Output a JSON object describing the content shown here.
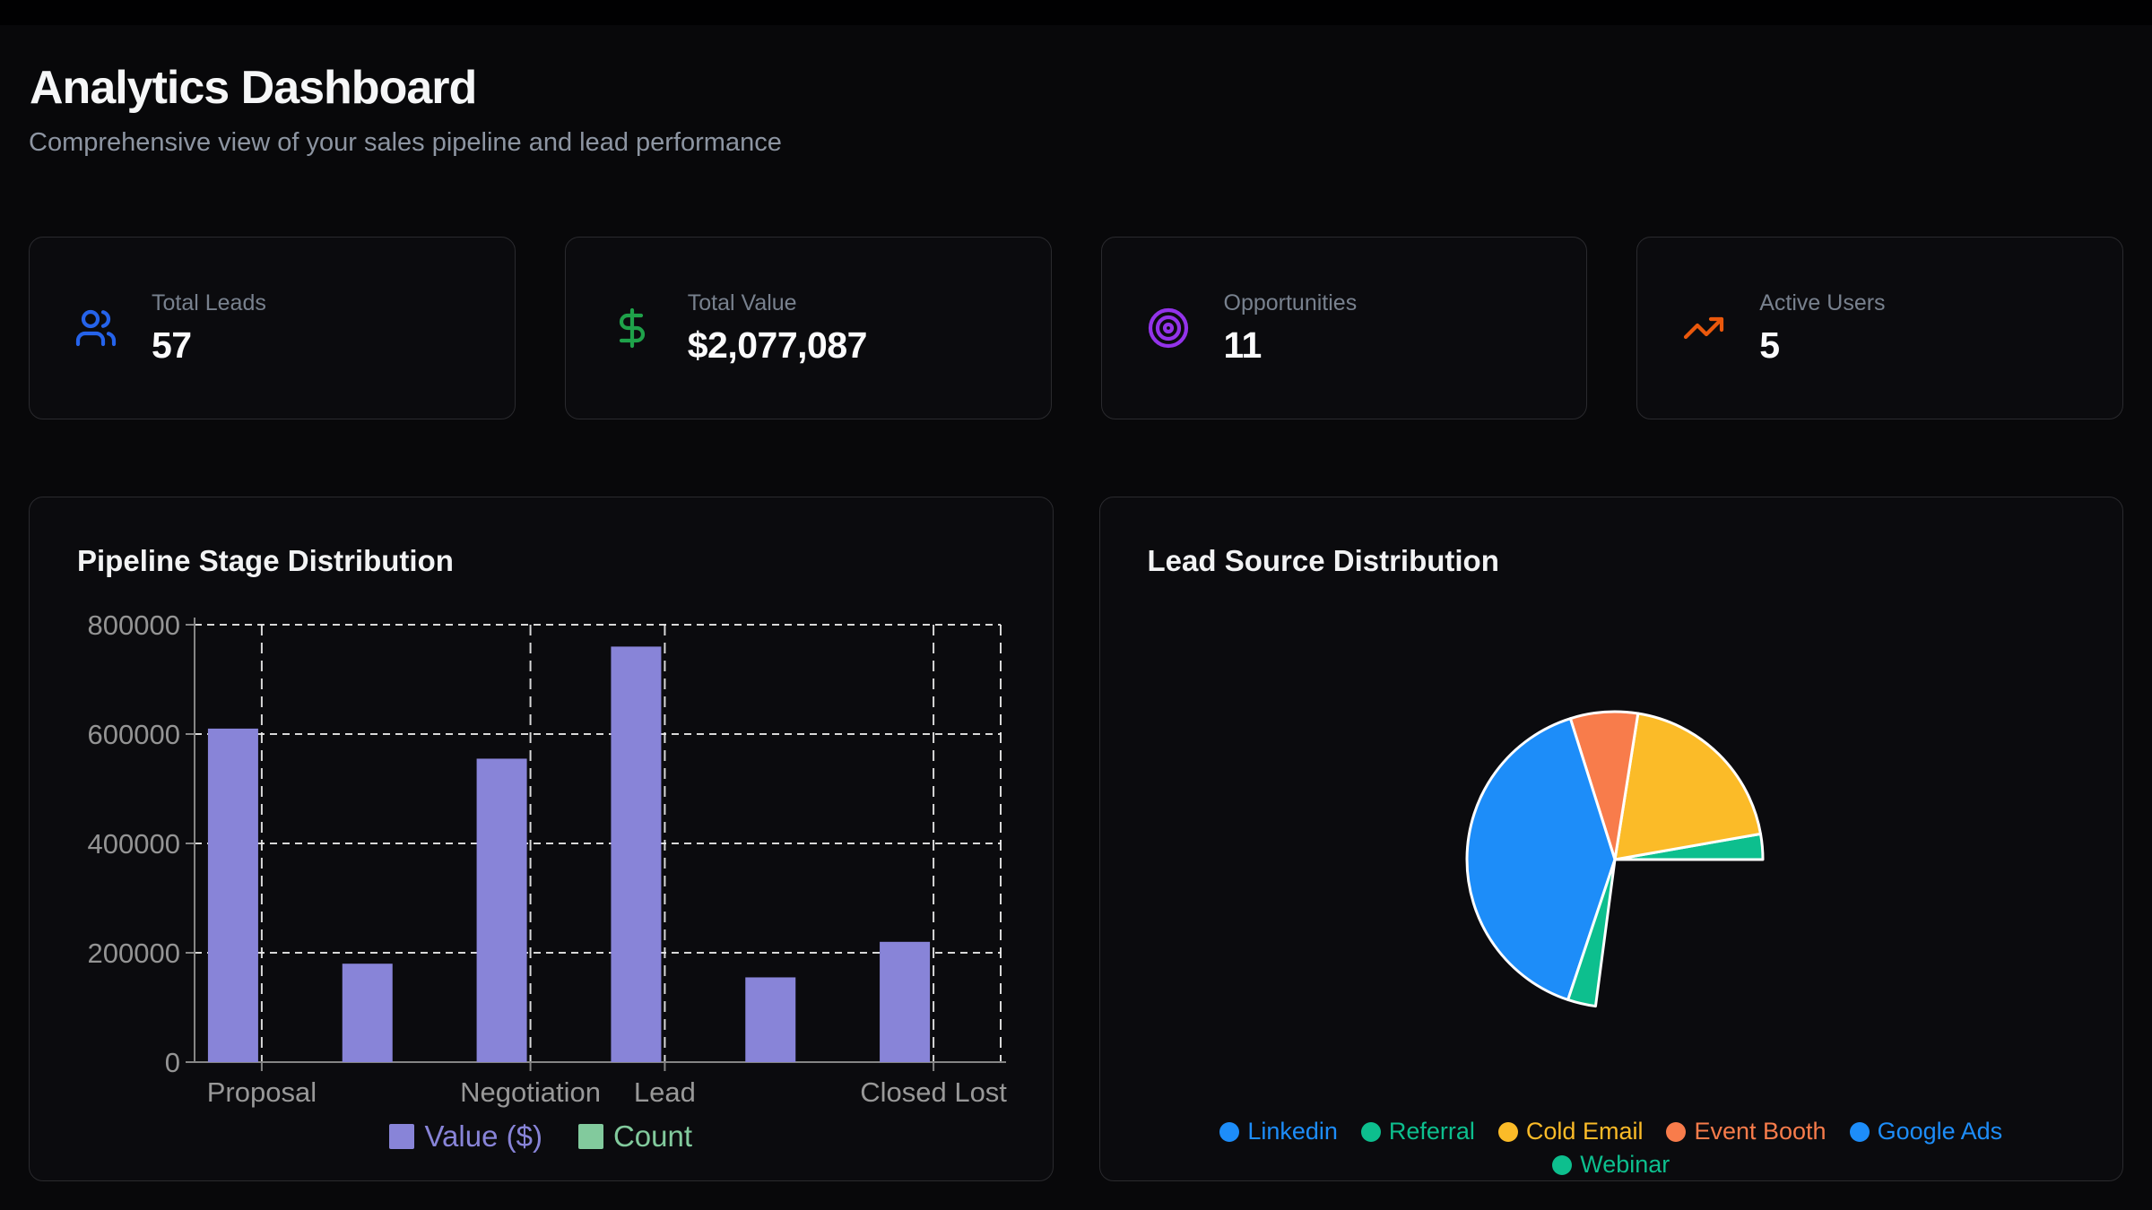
{
  "header": {
    "title": "Analytics Dashboard",
    "subtitle": "Comprehensive view of your sales pipeline and lead performance"
  },
  "stats": [
    {
      "label": "Total Leads",
      "value": "57",
      "icon": "users",
      "color": "#2563eb"
    },
    {
      "label": "Total Value",
      "value": "$2,077,087",
      "icon": "dollar-sign",
      "color": "#1fa24a"
    },
    {
      "label": "Opportunities",
      "value": "11",
      "icon": "target",
      "color": "#9333ea"
    },
    {
      "label": "Active Users",
      "value": "5",
      "icon": "trending-up",
      "color": "#ea580c"
    }
  ],
  "chart_data": [
    {
      "type": "bar",
      "title": "Pipeline Stage Distribution",
      "xlabel": "",
      "ylabel": "",
      "ylim": [
        0,
        800000
      ],
      "y_ticks": [
        0,
        200000,
        400000,
        600000,
        800000
      ],
      "num_bars": 6,
      "visible_x_ticks": [
        {
          "label": "Proposal",
          "slot": 0
        },
        {
          "label": "Negotiation",
          "slot": 2
        },
        {
          "label": "Lead",
          "slot": 3
        },
        {
          "label": "Closed Lost",
          "slot": 5
        }
      ],
      "series": [
        {
          "name": "Value ($)",
          "color": "#8884d8",
          "values": [
            610000,
            180000,
            555000,
            760000,
            155000,
            220000
          ],
          "rendered": true
        },
        {
          "name": "Count",
          "color": "#82ca9d",
          "values": null,
          "rendered": false
        }
      ],
      "grid": "dashed",
      "legend_position": "bottom"
    },
    {
      "type": "pie",
      "title": "Lead Source Distribution",
      "angle_convention": "degrees counterclockwise from 3 o'clock",
      "slices": [
        {
          "label": "Linkedin",
          "color": "#1d8df9",
          "start_deg": 262.5,
          "end_deg": 360,
          "pct_of_circle": 27.1,
          "rendered": false
        },
        {
          "label": "Referral",
          "color": "#0dbf8e",
          "start_deg": 0,
          "end_deg": 10,
          "pct_of_circle": 2.8,
          "rendered": true
        },
        {
          "label": "Cold Email",
          "color": "#fbbb28",
          "start_deg": 10,
          "end_deg": 81,
          "pct_of_circle": 19.7,
          "rendered": true
        },
        {
          "label": "Event Booth",
          "color": "#f87c4b",
          "start_deg": 81,
          "end_deg": 107.5,
          "pct_of_circle": 7.4,
          "rendered": true
        },
        {
          "label": "Google Ads",
          "color": "#1d8df9",
          "start_deg": 107.5,
          "end_deg": 251.5,
          "pct_of_circle": 40.0,
          "rendered": true
        },
        {
          "label": "Webinar",
          "color": "#0dbf8e",
          "start_deg": 251.5,
          "end_deg": 262.5,
          "pct_of_circle": 3.1,
          "rendered": true
        }
      ],
      "legend_rows": [
        [
          "Linkedin",
          "Referral",
          "Cold Email",
          "Event Booth",
          "Google Ads"
        ],
        [
          "Webinar"
        ]
      ],
      "legend_position": "bottom"
    }
  ]
}
